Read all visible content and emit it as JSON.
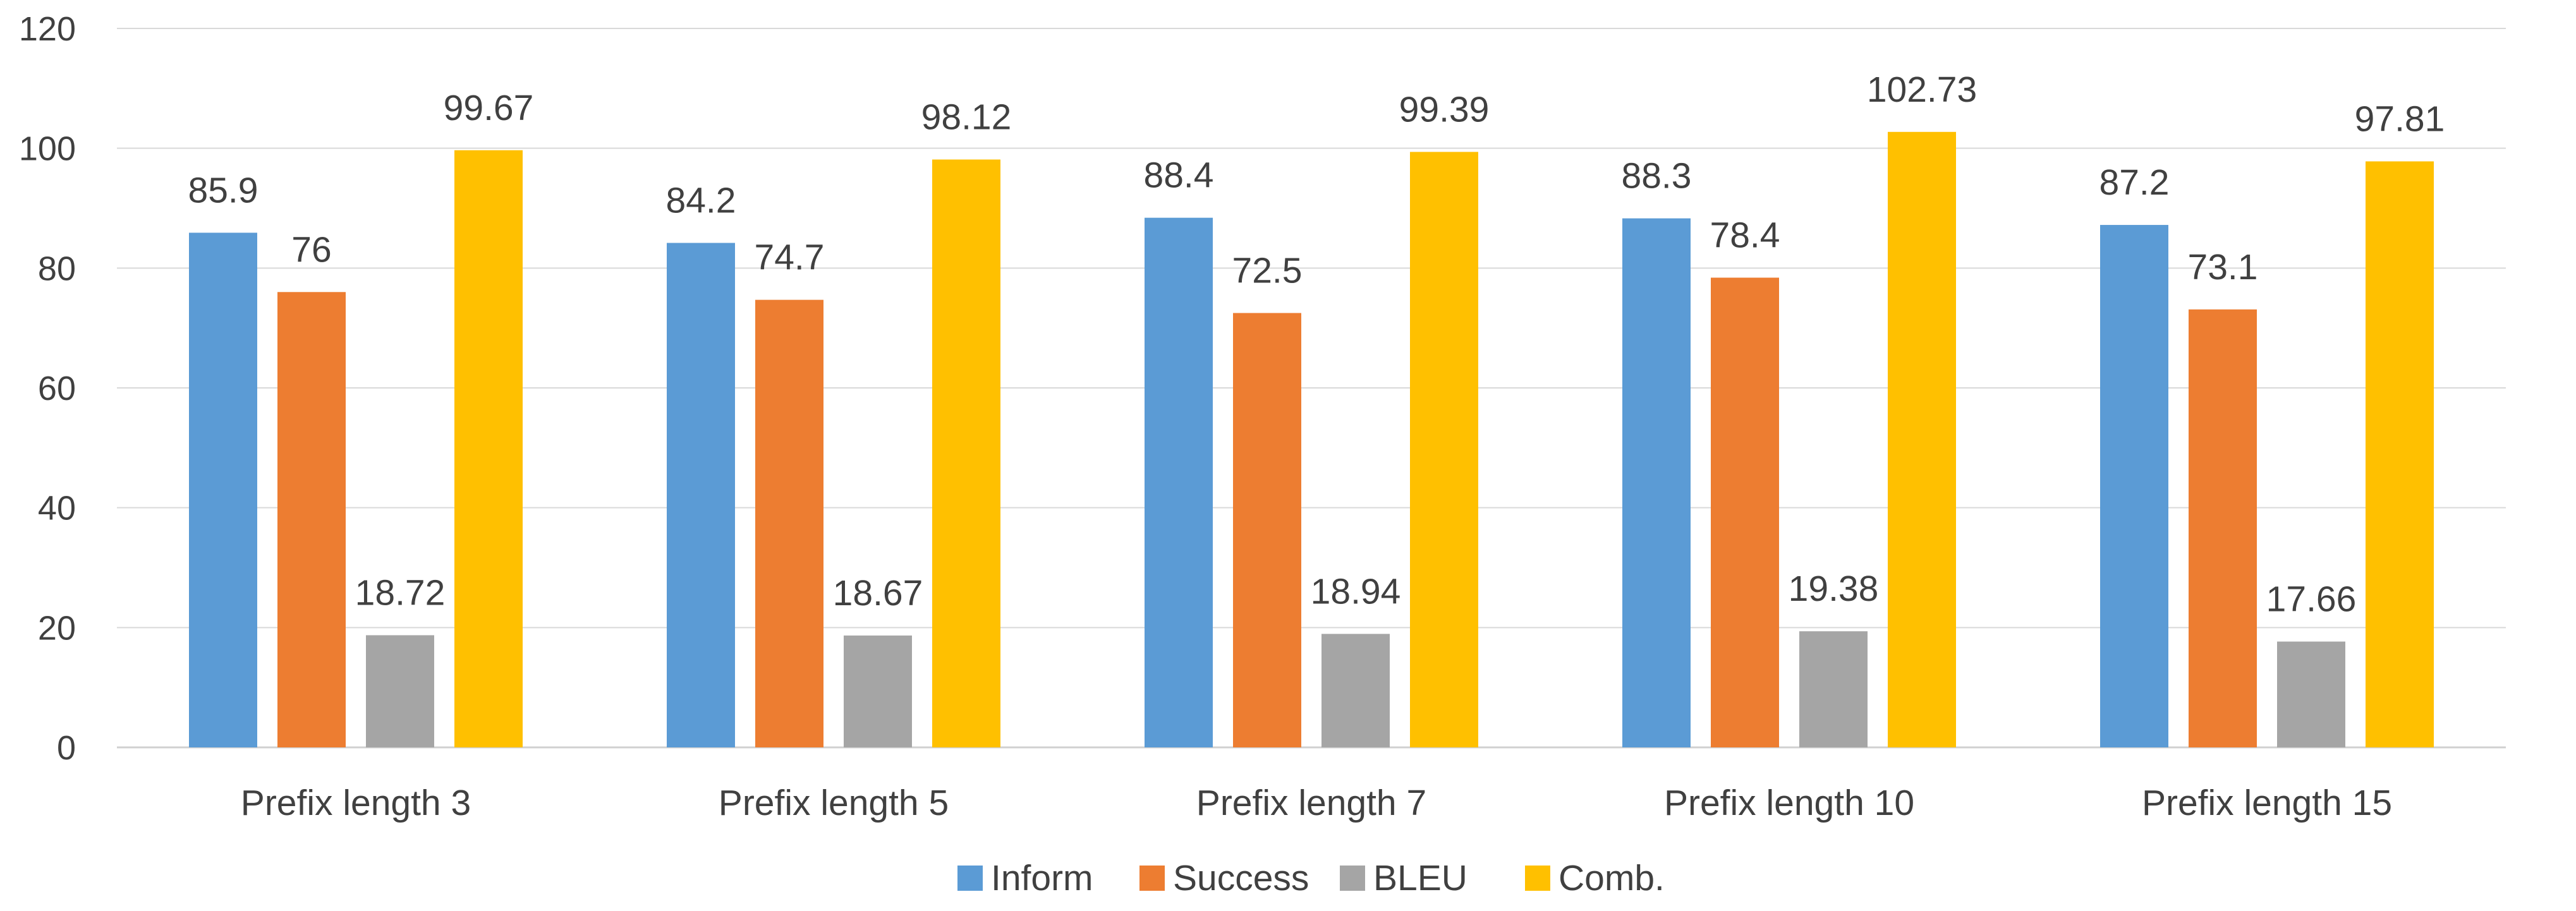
{
  "chart_data": {
    "type": "bar",
    "categories": [
      "Prefix length 3",
      "Prefix length 5",
      "Prefix length 7",
      "Prefix length 10",
      "Prefix length 15"
    ],
    "series": [
      {
        "name": "Inform",
        "color": "#5B9BD5",
        "values": [
          85.9,
          84.2,
          88.4,
          88.3,
          87.2
        ],
        "labels": [
          "85.9",
          "84.2",
          "88.4",
          "88.3",
          "87.2"
        ]
      },
      {
        "name": "Success",
        "color": "#ED7D31",
        "values": [
          76,
          74.7,
          72.5,
          78.4,
          73.1
        ],
        "labels": [
          "76",
          "74.7",
          "72.5",
          "78.4",
          "73.1"
        ]
      },
      {
        "name": "BLEU",
        "color": "#A5A5A5",
        "values": [
          18.72,
          18.67,
          18.94,
          19.38,
          17.66
        ],
        "labels": [
          "18.72",
          "18.67",
          "18.94",
          "19.38",
          "17.66"
        ]
      },
      {
        "name": "Comb.",
        "color": "#FFC000",
        "values": [
          99.67,
          98.12,
          99.39,
          102.73,
          97.81
        ],
        "labels": [
          "99.67",
          "98.12",
          "99.39",
          "102.73",
          "97.81"
        ]
      }
    ],
    "ylim": [
      0,
      120
    ],
    "yticks": [
      "0",
      "20",
      "40",
      "60",
      "80",
      "100",
      "120"
    ],
    "grid": true,
    "legend": "bottom",
    "title": "",
    "xlabel": "",
    "ylabel": ""
  }
}
